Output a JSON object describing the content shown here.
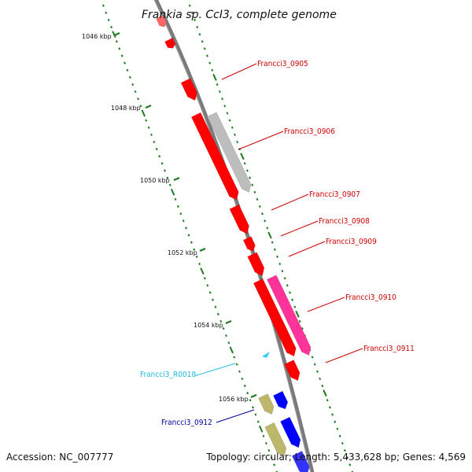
{
  "title": "Frankia sp. CcI3, complete genome",
  "accession": "Accession: NC_007777",
  "topology": "Topology: circular; Length: 5,433,628 bp; Genes: 4,569",
  "kbp_labels": [
    "1046 kbp",
    "1048 kbp",
    "1050 kbp",
    "1052 kbp",
    "1054 kbp",
    "1056 kbp"
  ],
  "gene_labels": [
    {
      "text": "Francci3_0905",
      "color": "#cc0000"
    },
    {
      "text": "Francci3_0906",
      "color": "#cc0000"
    },
    {
      "text": "Francci3_0907",
      "color": "#cc0000"
    },
    {
      "text": "Francci3_0908",
      "color": "#cc0000"
    },
    {
      "text": "Francci3_0909",
      "color": "#cc0000"
    },
    {
      "text": "Francci3_0910",
      "color": "#cc0000"
    },
    {
      "text": "Francci3_0911",
      "color": "#cc0000"
    },
    {
      "text": "Francci3_R0018",
      "color": "#22bbdd"
    },
    {
      "text": "Francci3_0912",
      "color": "#000099"
    }
  ],
  "colors": {
    "backbone": "#7a7a7a",
    "tick": "#1f7a1f",
    "gene_red": "#ff0000",
    "gene_grey": "#bdbdbd",
    "gene_pink": "#ff3399",
    "gene_olive": "#bdb76b",
    "gene_blue": "#0000ff",
    "rna_cyan": "#33ccff"
  }
}
